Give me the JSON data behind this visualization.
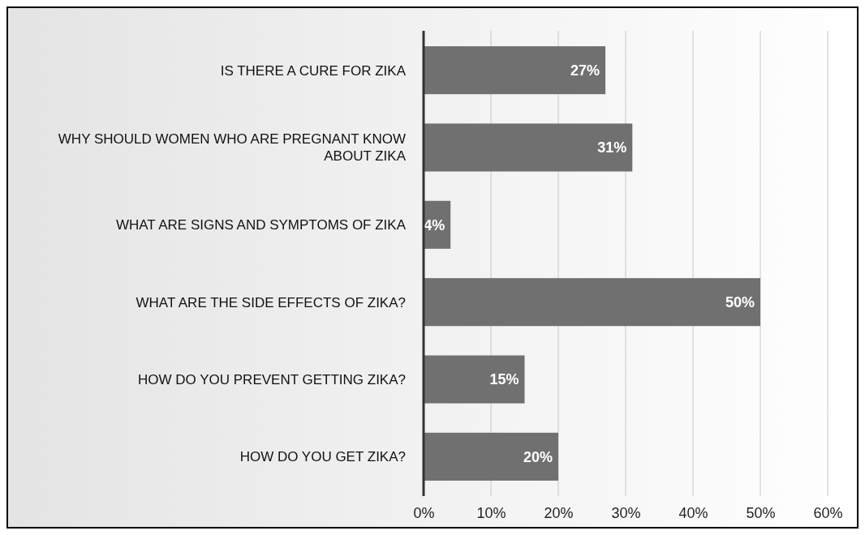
{
  "chart_data": {
    "type": "bar",
    "orientation": "horizontal",
    "categories": [
      "IS THERE A CURE FOR ZIKA",
      "WHY SHOULD WOMEN WHO ARE PREGNANT KNOW ABOUT ZIKA",
      "WHAT ARE SIGNS AND SYMPTOMS OF ZIKA",
      "WHAT ARE THE SIDE EFFECTS OF ZIKA?",
      "HOW DO YOU PREVENT GETTING ZIKA?",
      "HOW DO YOU GET ZIKA?"
    ],
    "values": [
      27,
      31,
      4,
      50,
      15,
      20
    ],
    "value_labels": [
      "27%",
      "31%",
      "4%",
      "50%",
      "15%",
      "20%"
    ],
    "color": "#707070",
    "xlim": [
      0,
      60
    ],
    "xticks": [
      {
        "value": 0,
        "label": "0%"
      },
      {
        "value": 10,
        "label": "10%"
      },
      {
        "value": 20,
        "label": "20%"
      },
      {
        "value": 30,
        "label": "30%"
      },
      {
        "value": 40,
        "label": "40%"
      },
      {
        "value": 50,
        "label": "50%"
      },
      {
        "value": 60,
        "label": "60%"
      }
    ],
    "grid": "x"
  }
}
